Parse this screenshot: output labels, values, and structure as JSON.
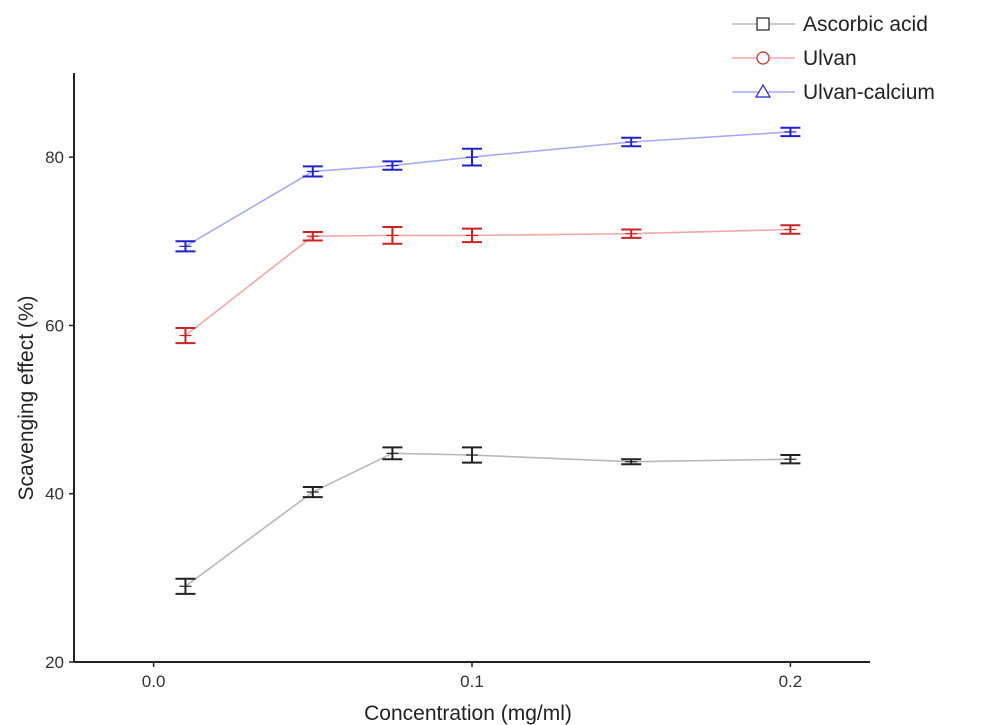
{
  "chart_data": {
    "type": "line",
    "title": "",
    "xlabel": "Concentration (mg/ml)",
    "ylabel": "Scavenging effect (%)",
    "xlim": [
      -0.025,
      0.225
    ],
    "ylim": [
      20,
      90
    ],
    "x_ticks": [
      {
        "value": 0.0,
        "label": "0.0"
      },
      {
        "value": 0.1,
        "label": "0.1"
      },
      {
        "value": 0.2,
        "label": "0.2"
      }
    ],
    "y_ticks": [
      {
        "value": 20,
        "label": "20"
      },
      {
        "value": 40,
        "label": "40"
      },
      {
        "value": 60,
        "label": "60"
      },
      {
        "value": 80,
        "label": "80"
      }
    ],
    "x": [
      0.01,
      0.05,
      0.075,
      0.1,
      0.15,
      0.2
    ],
    "grid": false,
    "legend": "top-right",
    "series": [
      {
        "name": "Ascorbic acid",
        "color": "#222222",
        "line_color": "#b8b8b8",
        "marker": "square",
        "values": [
          29.0,
          40.2,
          44.8,
          44.6,
          43.8,
          44.1
        ],
        "errors": [
          0.9,
          0.6,
          0.7,
          0.9,
          0.3,
          0.5
        ]
      },
      {
        "name": "Ulvan",
        "color": "#cc2222",
        "line_color": "#f0a8a8",
        "marker": "circle",
        "values": [
          58.8,
          70.6,
          70.7,
          70.7,
          70.9,
          71.4
        ],
        "errors": [
          0.9,
          0.5,
          1.0,
          0.8,
          0.5,
          0.5
        ]
      },
      {
        "name": "Ulvan-calcium",
        "color": "#2222cc",
        "line_color": "#a8aaf0",
        "marker": "triangle",
        "values": [
          69.4,
          78.3,
          79.0,
          80.0,
          81.8,
          83.0
        ],
        "errors": [
          0.6,
          0.6,
          0.5,
          1.0,
          0.5,
          0.5
        ]
      }
    ]
  }
}
